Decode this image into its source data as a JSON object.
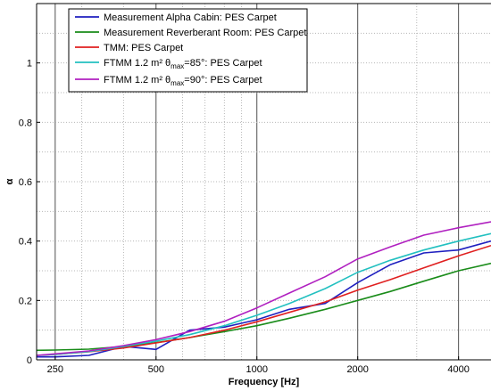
{
  "chart_data": {
    "type": "line",
    "title": "",
    "xlabel": "Frequency [Hz]",
    "ylabel": "α",
    "x_scale": "log",
    "xlim": [
      220,
      5000
    ],
    "ylim": [
      0,
      1.2
    ],
    "grid": true,
    "legend_position": "top-left",
    "x_ticks": [
      {
        "value": 250,
        "label": "250"
      },
      {
        "value": 500,
        "label": "500"
      },
      {
        "value": 1000,
        "label": "1000"
      },
      {
        "value": 2000,
        "label": "2000"
      },
      {
        "value": 4000,
        "label": "4000"
      }
    ],
    "y_ticks": [
      {
        "value": 0,
        "label": "0"
      },
      {
        "value": 0.2,
        "label": "0.2"
      },
      {
        "value": 0.4,
        "label": "0.4"
      },
      {
        "value": 0.6,
        "label": "0.6"
      },
      {
        "value": 0.8,
        "label": "0.8"
      },
      {
        "value": 1,
        "label": "1"
      }
    ],
    "series": [
      {
        "name": "Measurement Alpha Cabin: PES Carpet",
        "legend": {
          "pre": "Measurement Alpha Cabin: PES Carpet"
        },
        "color": "#1f1fbf",
        "points": [
          [
            220,
            0.01
          ],
          [
            250,
            0.01
          ],
          [
            315,
            0.015
          ],
          [
            400,
            0.045
          ],
          [
            450,
            0.04
          ],
          [
            500,
            0.035
          ],
          [
            630,
            0.1
          ],
          [
            800,
            0.11
          ],
          [
            1000,
            0.135
          ],
          [
            1250,
            0.17
          ],
          [
            1600,
            0.19
          ],
          [
            2000,
            0.26
          ],
          [
            2500,
            0.32
          ],
          [
            3150,
            0.36
          ],
          [
            4000,
            0.37
          ],
          [
            5000,
            0.4
          ]
        ]
      },
      {
        "name": "Measurement Reverberant Room: PES Carpet",
        "legend": {
          "pre": "Measurement Reverberant Room: PES Carpet"
        },
        "color": "#1a8c1a",
        "points": [
          [
            220,
            0.032
          ],
          [
            250,
            0.033
          ],
          [
            315,
            0.036
          ],
          [
            400,
            0.045
          ],
          [
            500,
            0.058
          ],
          [
            630,
            0.075
          ],
          [
            800,
            0.095
          ],
          [
            1000,
            0.115
          ],
          [
            1250,
            0.14
          ],
          [
            1600,
            0.17
          ],
          [
            2000,
            0.2
          ],
          [
            2500,
            0.23
          ],
          [
            3150,
            0.265
          ],
          [
            4000,
            0.3
          ],
          [
            5000,
            0.325
          ]
        ]
      },
      {
        "name": "TMM: PES Carpet",
        "legend": {
          "pre": "TMM: PES Carpet"
        },
        "color": "#e02020",
        "points": [
          [
            220,
            0.015
          ],
          [
            250,
            0.018
          ],
          [
            315,
            0.027
          ],
          [
            400,
            0.04
          ],
          [
            500,
            0.057
          ],
          [
            630,
            0.075
          ],
          [
            800,
            0.1
          ],
          [
            1000,
            0.128
          ],
          [
            1250,
            0.16
          ],
          [
            1600,
            0.195
          ],
          [
            2000,
            0.235
          ],
          [
            2500,
            0.27
          ],
          [
            3150,
            0.31
          ],
          [
            4000,
            0.35
          ],
          [
            5000,
            0.385
          ]
        ]
      },
      {
        "name": "FTMM 1.2 m² θmax=85°: PES Carpet",
        "legend": {
          "pre": "FTMM 1.2 m² θ",
          "sub": "max",
          "post": "=85°: PES Carpet"
        },
        "color": "#22c0c0",
        "points": [
          [
            220,
            0.015
          ],
          [
            250,
            0.018
          ],
          [
            315,
            0.028
          ],
          [
            400,
            0.045
          ],
          [
            500,
            0.063
          ],
          [
            630,
            0.085
          ],
          [
            800,
            0.115
          ],
          [
            1000,
            0.15
          ],
          [
            1250,
            0.19
          ],
          [
            1600,
            0.24
          ],
          [
            2000,
            0.295
          ],
          [
            2500,
            0.335
          ],
          [
            3150,
            0.37
          ],
          [
            4000,
            0.4
          ],
          [
            5000,
            0.425
          ]
        ]
      },
      {
        "name": "FTMM 1.2 m² θmax=90°: PES Carpet",
        "legend": {
          "pre": "FTMM 1.2 m² θ",
          "sub": "max",
          "post": "=90°: PES Carpet"
        },
        "color": "#b020c0",
        "points": [
          [
            220,
            0.015
          ],
          [
            250,
            0.02
          ],
          [
            315,
            0.03
          ],
          [
            400,
            0.048
          ],
          [
            500,
            0.068
          ],
          [
            630,
            0.095
          ],
          [
            800,
            0.13
          ],
          [
            1000,
            0.175
          ],
          [
            1250,
            0.225
          ],
          [
            1600,
            0.28
          ],
          [
            2000,
            0.34
          ],
          [
            2500,
            0.38
          ],
          [
            3150,
            0.42
          ],
          [
            4000,
            0.445
          ],
          [
            5000,
            0.465
          ]
        ]
      }
    ]
  }
}
